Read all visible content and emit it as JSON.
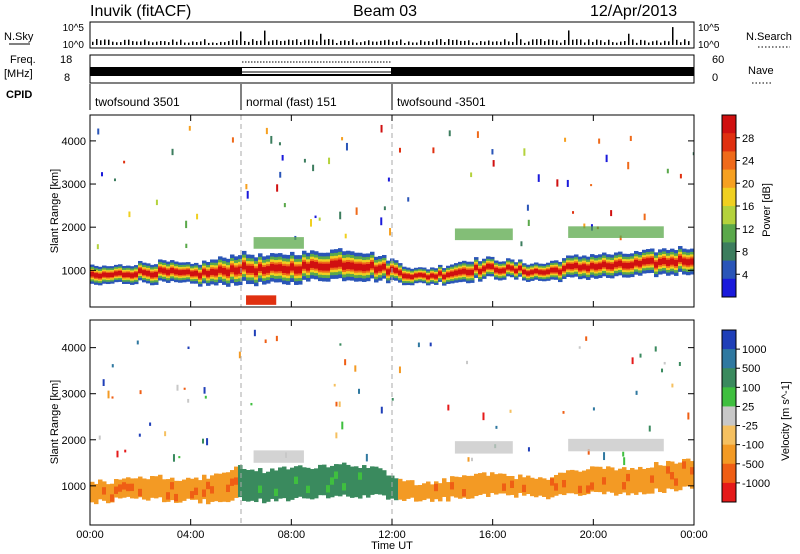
{
  "header": {
    "station": "Inuvik (fitACF)",
    "beam": "Beam 03",
    "date": "12/Apr/2013"
  },
  "noise_panel": {
    "left_label": "N.Sky",
    "right_label": "N.Search",
    "left_ticks": [
      "10^5",
      "10^0"
    ],
    "right_ticks": [
      "10^5",
      "10^0"
    ]
  },
  "freq_panel": {
    "left_label_1": "Freq.",
    "left_label_2": "[MHz]",
    "left_ticks": [
      "18",
      "8"
    ],
    "right_label": "Nave",
    "right_ticks": [
      "60",
      "0"
    ],
    "cpid_label": "CPID"
  },
  "cpid": [
    {
      "start": 0,
      "end": 6,
      "label": "twofsound 3501"
    },
    {
      "start": 6,
      "end": 12,
      "label": "normal (fast) 151"
    },
    {
      "start": 12,
      "end": 24,
      "label": "twofsound -3501"
    }
  ],
  "colors": {
    "power_scale": [
      "#1a1adb",
      "#2a55b8",
      "#3c7d5e",
      "#5aa84a",
      "#b4d23c",
      "#f0d020",
      "#f6a020",
      "#ef6a1a",
      "#e03010",
      "#d01010"
    ],
    "velocity_scale": [
      "#e51a1a",
      "#ef5e14",
      "#f39a24",
      "#f5c060",
      "#c8c8c8",
      "#3fbf3f",
      "#3a8a5e",
      "#2f78a0",
      "#1f3fb8"
    ]
  },
  "chart_data": [
    {
      "type": "heatmap",
      "name": "power",
      "xlabel": "",
      "ylabel": "Slant Range [km]",
      "xlim": [
        0,
        24
      ],
      "ylim": [
        150,
        4600
      ],
      "yticks": [
        "1000",
        "2000",
        "3000",
        "4000"
      ],
      "colorbar_label": "Power [dB]",
      "colorbar_ticks": [
        "28",
        "24",
        "20",
        "16",
        "12",
        "8",
        "4"
      ],
      "bands": [
        {
          "x": 0.0,
          "center": 850,
          "thickness": 450
        },
        {
          "x": 1.0,
          "center": 900,
          "thickness": 400
        },
        {
          "x": 2.0,
          "center": 950,
          "thickness": 450
        },
        {
          "x": 3.0,
          "center": 950,
          "thickness": 500
        },
        {
          "x": 4.0,
          "center": 900,
          "thickness": 450
        },
        {
          "x": 5.0,
          "center": 950,
          "thickness": 600
        },
        {
          "x": 6.0,
          "center": 1050,
          "thickness": 700
        },
        {
          "x": 7.0,
          "center": 1000,
          "thickness": 650
        },
        {
          "x": 8.0,
          "center": 1050,
          "thickness": 700
        },
        {
          "x": 9.0,
          "center": 1100,
          "thickness": 650
        },
        {
          "x": 10.0,
          "center": 1150,
          "thickness": 700
        },
        {
          "x": 11.0,
          "center": 1100,
          "thickness": 650
        },
        {
          "x": 12.0,
          "center": 1000,
          "thickness": 500
        },
        {
          "x": 13.0,
          "center": 850,
          "thickness": 350
        },
        {
          "x": 14.0,
          "center": 900,
          "thickness": 400
        },
        {
          "x": 15.0,
          "center": 1000,
          "thickness": 500
        },
        {
          "x": 16.0,
          "center": 1050,
          "thickness": 450
        },
        {
          "x": 17.0,
          "center": 1000,
          "thickness": 400
        },
        {
          "x": 18.0,
          "center": 950,
          "thickness": 400
        },
        {
          "x": 19.0,
          "center": 1050,
          "thickness": 500
        },
        {
          "x": 20.0,
          "center": 1100,
          "thickness": 550
        },
        {
          "x": 21.0,
          "center": 1100,
          "thickness": 550
        },
        {
          "x": 22.0,
          "center": 1150,
          "thickness": 550
        },
        {
          "x": 23.0,
          "center": 1200,
          "thickness": 600
        },
        {
          "x": 24.0,
          "center": 1250,
          "thickness": 600
        }
      ]
    },
    {
      "type": "heatmap",
      "name": "velocity",
      "xlabel": "Time UT",
      "ylabel": "Slant Range [km]",
      "xlim": [
        0,
        24
      ],
      "ylim": [
        150,
        4600
      ],
      "xticks": [
        "00:00",
        "04:00",
        "08:00",
        "12:00",
        "16:00",
        "20:00",
        "00:00"
      ],
      "yticks": [
        "1000",
        "2000",
        "3000",
        "4000"
      ],
      "colorbar_label": "Velocity [m s^-1]",
      "colorbar_ticks": [
        "1000",
        "500",
        "100",
        "25",
        "-25",
        "-100",
        "-500",
        "-1000"
      ],
      "segments": [
        {
          "start": 0,
          "end": 5.8,
          "value": -300
        },
        {
          "start": 5.8,
          "end": 12.2,
          "value": 300
        },
        {
          "start": 12.2,
          "end": 24,
          "value": -300
        }
      ]
    }
  ]
}
